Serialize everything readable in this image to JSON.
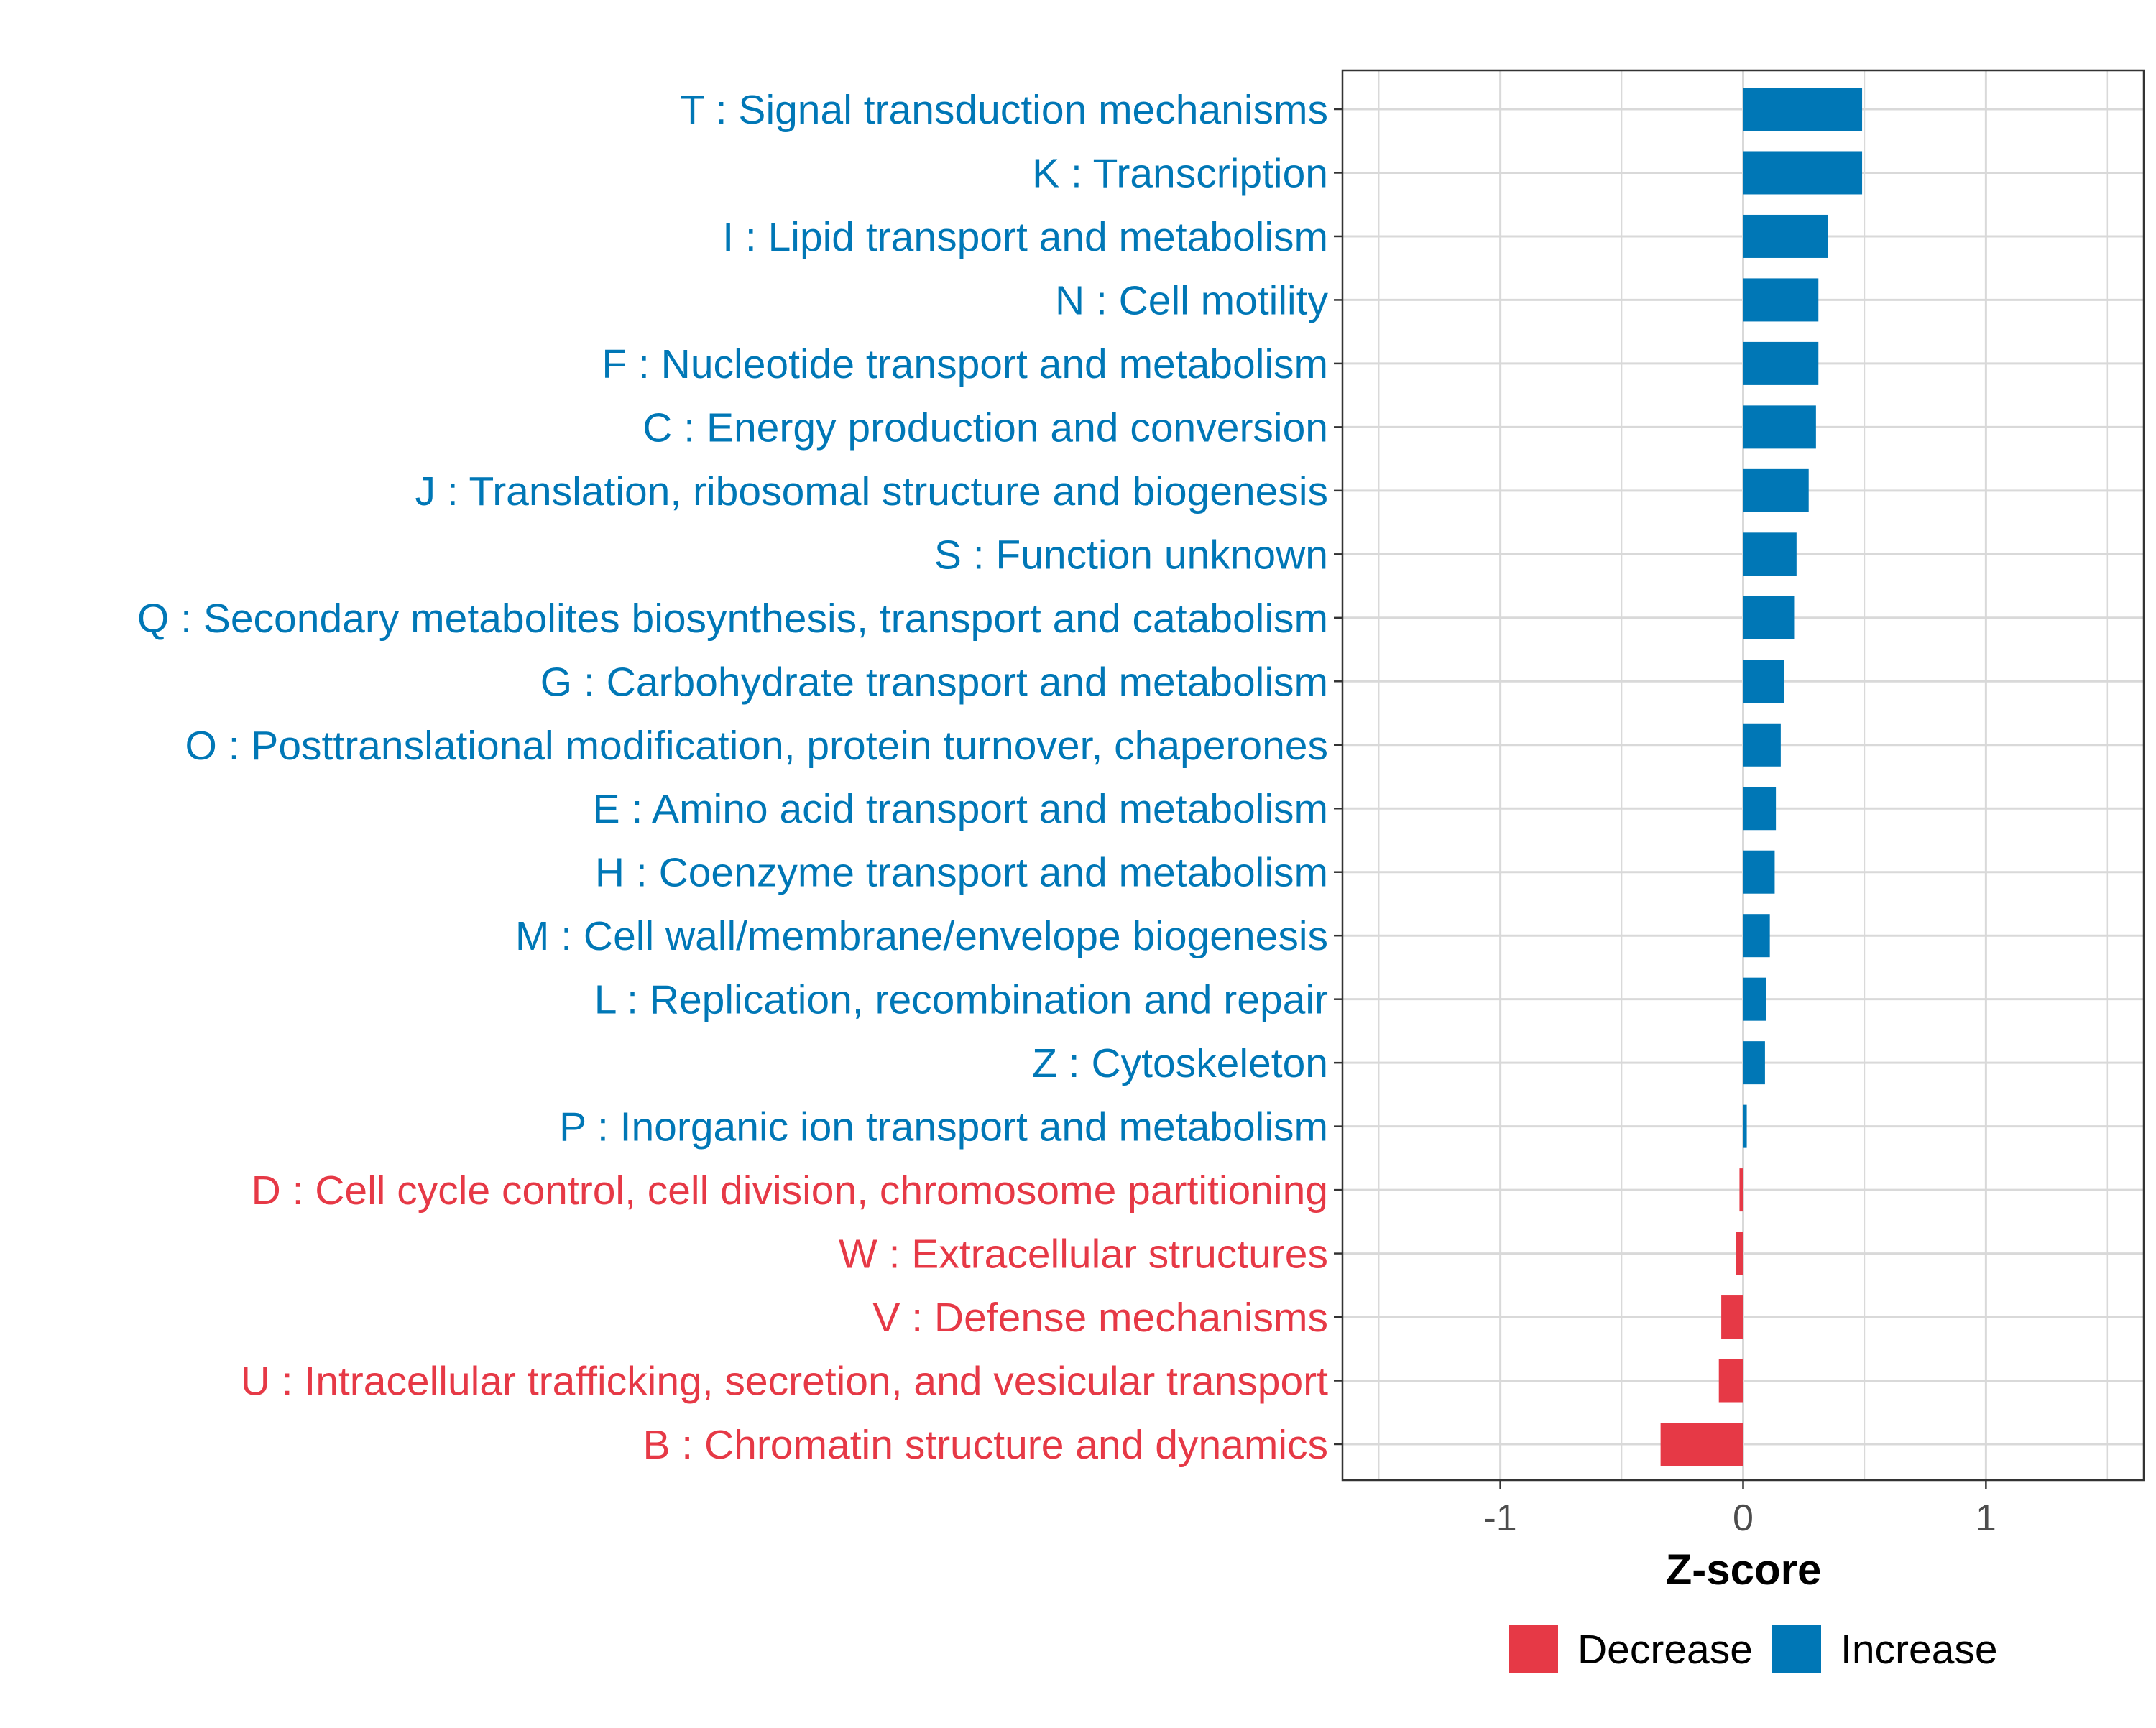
{
  "chart_data": {
    "type": "bar",
    "orientation": "horizontal",
    "xlabel": "Z-score",
    "xlim": [
      -1.65,
      1.65
    ],
    "xticks": [
      -1,
      0,
      1
    ],
    "xtick_labels": [
      "-1",
      "0",
      "1"
    ],
    "grid": true,
    "legend": {
      "position": "bottom",
      "entries": [
        {
          "label": "Decrease",
          "color": "#E63946"
        },
        {
          "label": "Increase",
          "color": "#0077B6"
        }
      ]
    },
    "categories": [
      "T : Signal transduction mechanisms",
      "K : Transcription",
      "I : Lipid transport and metabolism",
      "N : Cell motility",
      "F : Nucleotide transport and metabolism",
      "C : Energy production and conversion",
      "J : Translation, ribosomal structure and biogenesis",
      "S : Function unknown",
      "Q : Secondary metabolites biosynthesis, transport and catabolism",
      "G : Carbohydrate transport and metabolism",
      "O : Posttranslational modification, protein turnover, chaperones",
      "E : Amino acid transport and metabolism",
      "H : Coenzyme transport and metabolism",
      "M : Cell wall/membrane/envelope biogenesis",
      "L : Replication, recombination and repair",
      "Z : Cytoskeleton",
      "P : Inorganic ion transport and metabolism",
      "D : Cell cycle control, cell division, chromosome partitioning",
      "W : Extracellular structures",
      "V : Defense mechanisms",
      "U : Intracellular trafficking, secretion, and vesicular transport",
      "B : Chromatin structure and dynamics"
    ],
    "values": [
      0.49,
      0.49,
      0.35,
      0.31,
      0.31,
      0.3,
      0.27,
      0.22,
      0.21,
      0.17,
      0.155,
      0.135,
      0.13,
      0.11,
      0.095,
      0.09,
      0.015,
      -0.015,
      -0.03,
      -0.09,
      -0.1,
      -0.34
    ],
    "groups": [
      "Increase",
      "Increase",
      "Increase",
      "Increase",
      "Increase",
      "Increase",
      "Increase",
      "Increase",
      "Increase",
      "Increase",
      "Increase",
      "Increase",
      "Increase",
      "Increase",
      "Increase",
      "Increase",
      "Increase",
      "Decrease",
      "Decrease",
      "Decrease",
      "Decrease",
      "Decrease"
    ]
  }
}
